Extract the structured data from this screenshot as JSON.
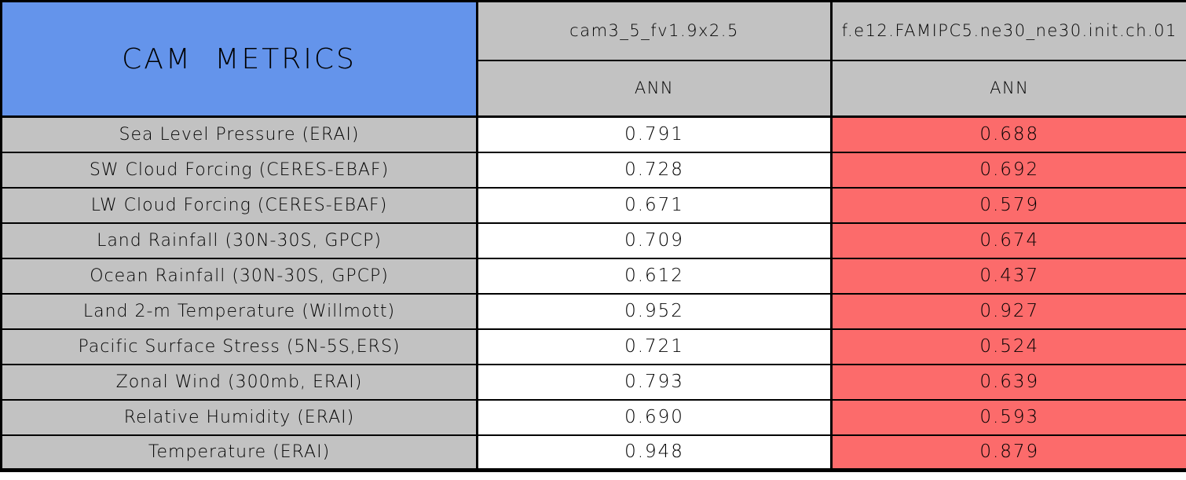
{
  "title": "CAM METRICS",
  "colors": {
    "title_bg": "#6494EB",
    "header_bg": "#C2C2C2",
    "label_bg": "#C2C2C2",
    "model1_value_bg": "#FFFFFF",
    "model2_value_bg": "#FC6B6B",
    "border": "#000000",
    "text": "#000000"
  },
  "columns": [
    {
      "model": "cam3_5_fv1.9x2.5",
      "season": "ANN"
    },
    {
      "model": "f.e12.FAMIPC5.ne30_ne30.init.ch.01",
      "season": "ANN"
    }
  ],
  "rows": [
    {
      "label": "Sea Level Pressure (ERAI)",
      "values": [
        "0.791",
        "0.688"
      ]
    },
    {
      "label": "SW Cloud Forcing (CERES-EBAF)",
      "values": [
        "0.728",
        "0.692"
      ]
    },
    {
      "label": "LW Cloud Forcing (CERES-EBAF)",
      "values": [
        "0.671",
        "0.579"
      ]
    },
    {
      "label": "Land Rainfall (30N-30S, GPCP)",
      "values": [
        "0.709",
        "0.674"
      ]
    },
    {
      "label": "Ocean Rainfall (30N-30S, GPCP)",
      "values": [
        "0.612",
        "0.437"
      ]
    },
    {
      "label": "Land 2-m Temperature (Willmott)",
      "values": [
        "0.952",
        "0.927"
      ]
    },
    {
      "label": "Pacific Surface Stress (5N-5S,ERS)",
      "values": [
        "0.721",
        "0.524"
      ]
    },
    {
      "label": "Zonal Wind (300mb, ERAI)",
      "values": [
        "0.793",
        "0.639"
      ]
    },
    {
      "label": "Relative Humidity (ERAI)",
      "values": [
        "0.690",
        "0.593"
      ]
    },
    {
      "label": "Temperature (ERAI)",
      "values": [
        "0.948",
        "0.879"
      ]
    }
  ],
  "chart_data": {
    "type": "table",
    "title": "CAM METRICS",
    "row_labels": [
      "Sea Level Pressure (ERAI)",
      "SW Cloud Forcing (CERES-EBAF)",
      "LW Cloud Forcing (CERES-EBAF)",
      "Land Rainfall (30N-30S, GPCP)",
      "Ocean Rainfall (30N-30S, GPCP)",
      "Land 2-m Temperature (Willmott)",
      "Pacific Surface Stress (5N-5S,ERS)",
      "Zonal Wind (300mb, ERAI)",
      "Relative Humidity (ERAI)",
      "Temperature (ERAI)"
    ],
    "series": [
      {
        "name": "cam3_5_fv1.9x2.5",
        "season": "ANN",
        "values": [
          0.791,
          0.728,
          0.671,
          0.709,
          0.612,
          0.952,
          0.721,
          0.793,
          0.69,
          0.948
        ]
      },
      {
        "name": "f.e12.FAMIPC5.ne30_ne30.init.ch.01",
        "season": "ANN",
        "values": [
          0.688,
          0.692,
          0.579,
          0.674,
          0.437,
          0.927,
          0.524,
          0.639,
          0.593,
          0.879
        ]
      }
    ],
    "notes": "Second model column cells highlighted red; first model column cells white; metric label and header cells gray; title cell blue."
  }
}
